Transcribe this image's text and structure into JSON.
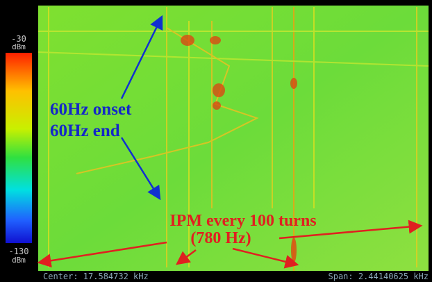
{
  "colorbar": {
    "top_value": "-30",
    "top_unit": "dBm",
    "bottom_value": "-130",
    "bottom_unit": "dBm"
  },
  "annotations": {
    "onset": "60Hz onset",
    "end": "60Hz end",
    "ipm": "IPM every 100 turns",
    "ipm_freq": "(780 Hz)"
  },
  "footer": {
    "center": "Center: 17.584732 kHz",
    "span": "Span: 2.44140625 kHz"
  }
}
